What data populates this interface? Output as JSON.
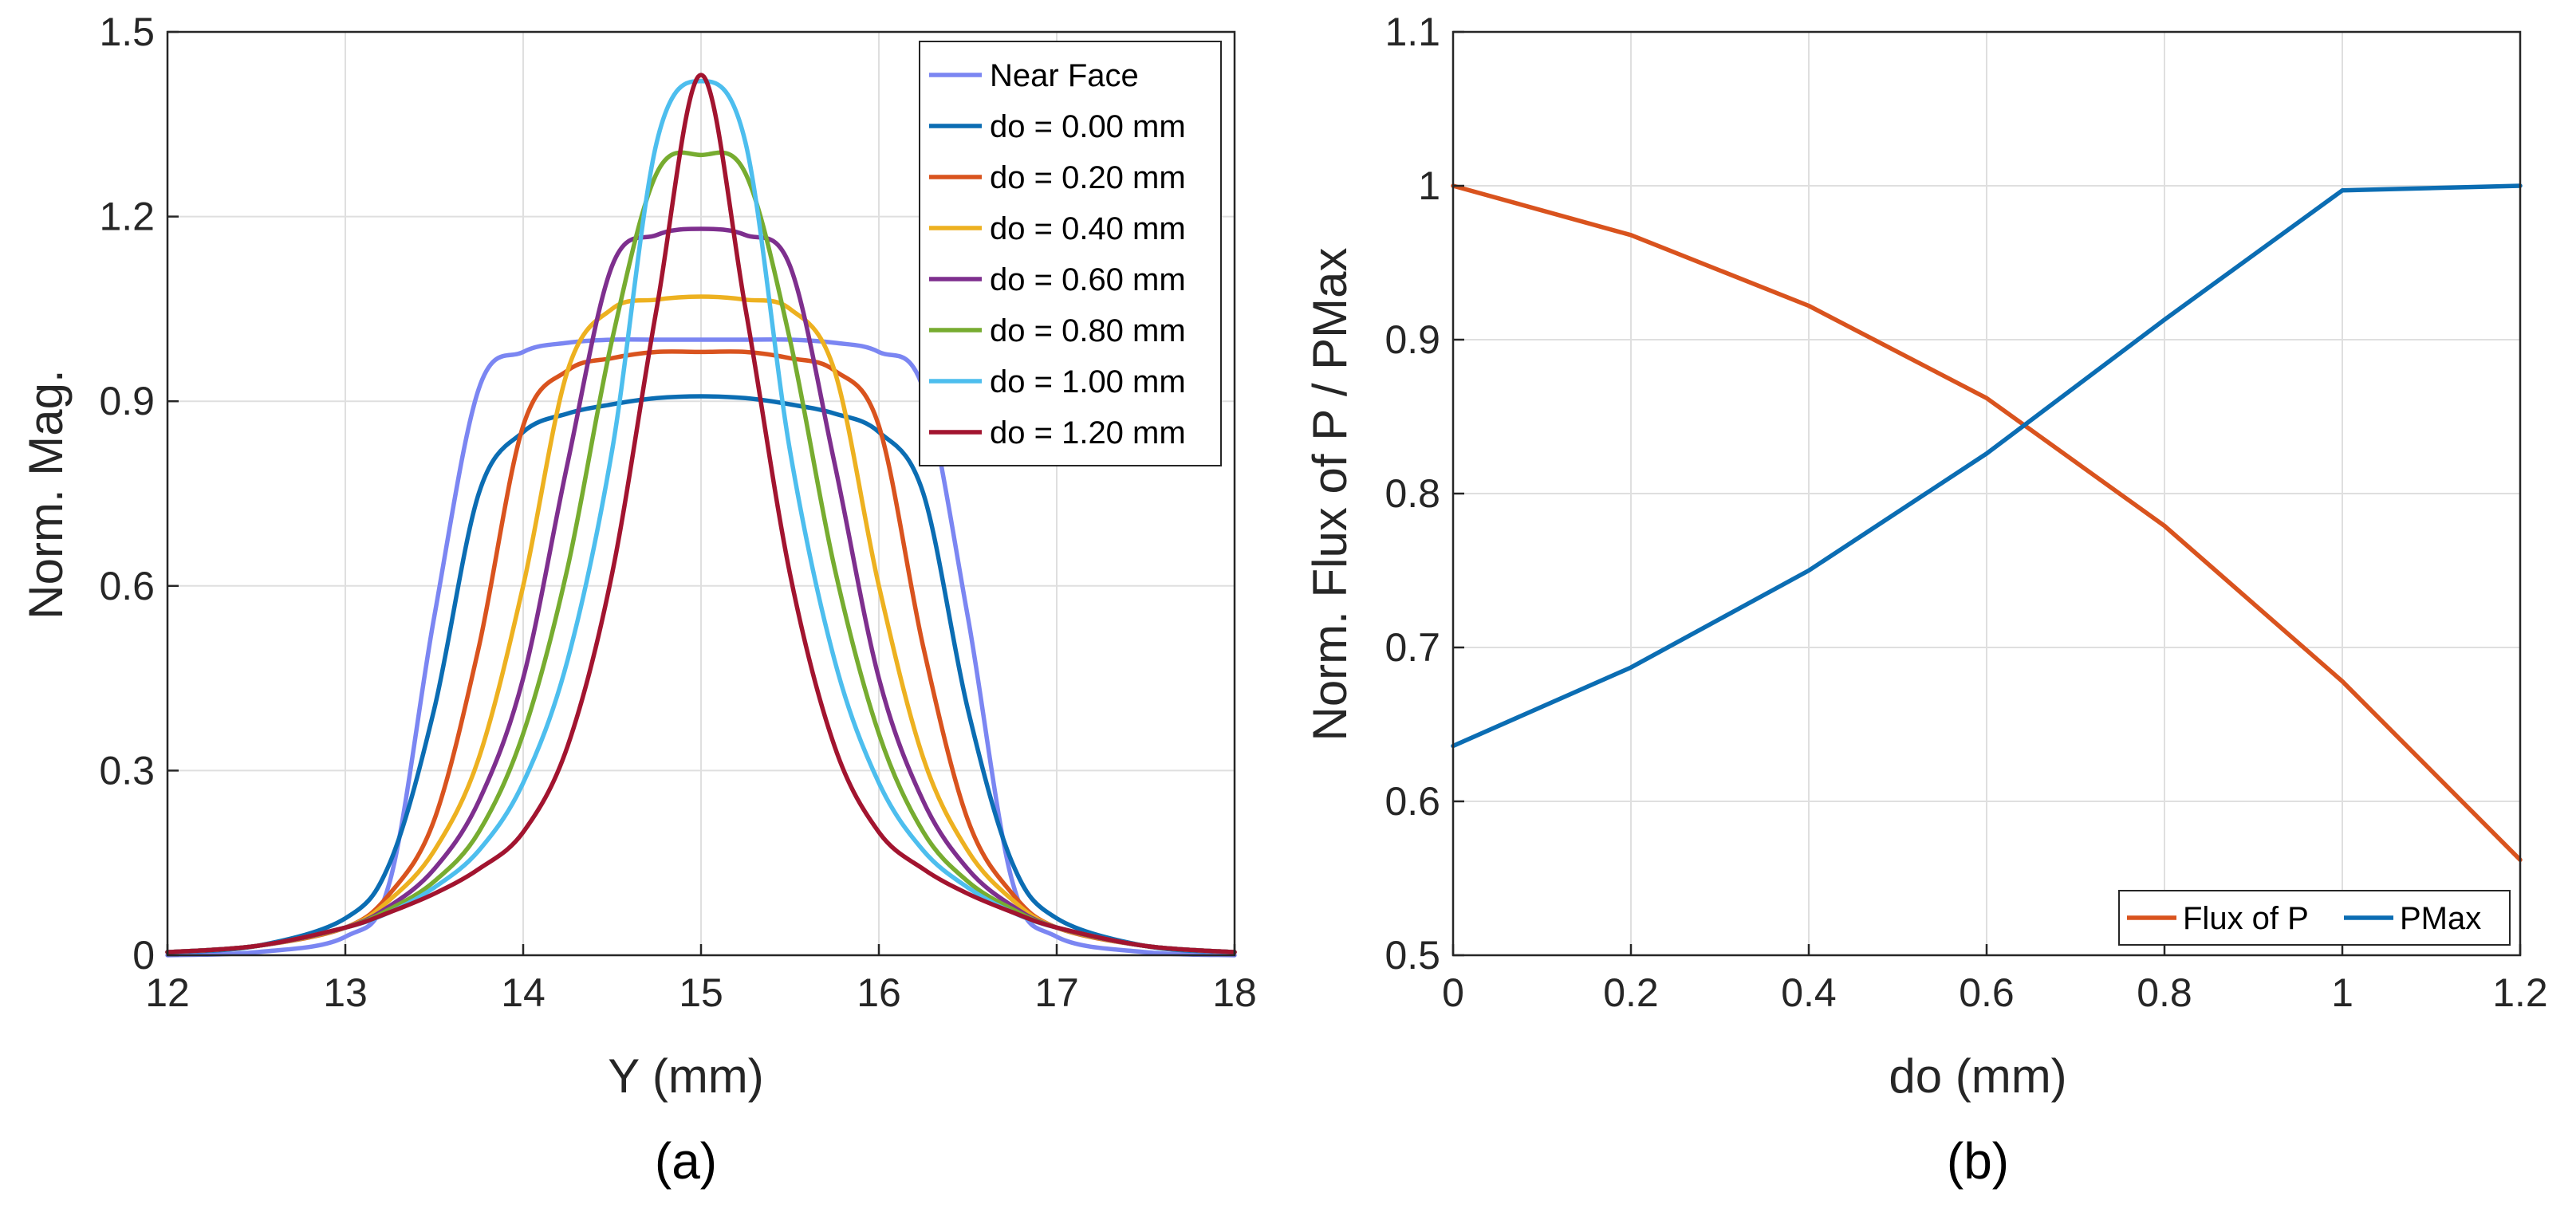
{
  "chart_data": [
    {
      "type": "line",
      "panel_label": "(a)",
      "xlabel": "Y (mm)",
      "ylabel": "Norm. Mag.",
      "xlim": [
        12,
        18
      ],
      "ylim": [
        0,
        1.5
      ],
      "x_ticks": [
        "12",
        "13",
        "14",
        "15",
        "16",
        "17",
        "18"
      ],
      "y_ticks": [
        "0",
        "0.3",
        "0.6",
        "0.9",
        "1.2",
        "1.5"
      ],
      "grid": true,
      "legend_position": "top-right",
      "x": [
        12.0,
        12.5,
        13.0,
        13.25,
        13.5,
        13.75,
        14.0,
        14.25,
        14.5,
        14.75,
        15.0,
        15.25,
        15.5,
        15.75,
        16.0,
        16.25,
        16.5,
        16.75,
        17.0,
        17.5,
        18.0
      ],
      "series": [
        {
          "name": "Near Face",
          "color": "#7b86f2",
          "values": [
            0.0,
            0.005,
            0.03,
            0.12,
            0.55,
            0.92,
            0.98,
            0.995,
            1.0,
            1.0,
            1.0,
            1.0,
            1.0,
            0.995,
            0.98,
            0.92,
            0.55,
            0.12,
            0.03,
            0.005,
            0.0
          ]
        },
        {
          "name": "do = 0.00 mm",
          "color": "#0b6db3",
          "values": [
            0.005,
            0.015,
            0.06,
            0.15,
            0.4,
            0.75,
            0.85,
            0.88,
            0.895,
            0.905,
            0.908,
            0.905,
            0.895,
            0.88,
            0.85,
            0.75,
            0.4,
            0.15,
            0.06,
            0.015,
            0.005
          ]
        },
        {
          "name": "do = 0.20 mm",
          "color": "#d9531e",
          "values": [
            0.005,
            0.015,
            0.045,
            0.1,
            0.22,
            0.5,
            0.86,
            0.95,
            0.97,
            0.98,
            0.98,
            0.98,
            0.97,
            0.95,
            0.86,
            0.5,
            0.22,
            0.1,
            0.045,
            0.015,
            0.005
          ]
        },
        {
          "name": "do = 0.40 mm",
          "color": "#edb120",
          "values": [
            0.005,
            0.015,
            0.045,
            0.09,
            0.17,
            0.32,
            0.6,
            0.95,
            1.05,
            1.065,
            1.07,
            1.065,
            1.05,
            0.95,
            0.6,
            0.32,
            0.17,
            0.09,
            0.045,
            0.015,
            0.005
          ]
        },
        {
          "name": "do = 0.60 mm",
          "color": "#7e2f8e",
          "values": [
            0.005,
            0.015,
            0.045,
            0.08,
            0.14,
            0.25,
            0.45,
            0.8,
            1.12,
            1.17,
            1.18,
            1.17,
            1.12,
            0.8,
            0.45,
            0.25,
            0.14,
            0.08,
            0.045,
            0.015,
            0.005
          ]
        },
        {
          "name": "do = 0.80 mm",
          "color": "#77ac30",
          "values": [
            0.005,
            0.015,
            0.045,
            0.075,
            0.12,
            0.2,
            0.36,
            0.63,
            1.0,
            1.27,
            1.3,
            1.27,
            1.0,
            0.63,
            0.36,
            0.2,
            0.12,
            0.075,
            0.045,
            0.015,
            0.005
          ]
        },
        {
          "name": "do = 1.00 mm",
          "color": "#4dbeee",
          "values": [
            0.005,
            0.015,
            0.045,
            0.07,
            0.11,
            0.17,
            0.28,
            0.48,
            0.82,
            1.32,
            1.42,
            1.32,
            0.82,
            0.48,
            0.28,
            0.17,
            0.11,
            0.07,
            0.045,
            0.015,
            0.005
          ]
        },
        {
          "name": "do = 1.20 mm",
          "color": "#a2142f",
          "values": [
            0.005,
            0.015,
            0.045,
            0.07,
            0.1,
            0.14,
            0.2,
            0.34,
            0.62,
            1.05,
            1.43,
            1.05,
            0.62,
            0.34,
            0.2,
            0.14,
            0.1,
            0.07,
            0.045,
            0.015,
            0.005
          ]
        }
      ]
    },
    {
      "type": "line",
      "panel_label": "(b)",
      "xlabel": "do (mm)",
      "ylabel": "Norm. Flux of P / PMax",
      "xlim": [
        0,
        1.2
      ],
      "ylim": [
        0.5,
        1.1
      ],
      "x_ticks": [
        "0",
        "0.2",
        "0.4",
        "0.6",
        "0.8",
        "1",
        "1.2"
      ],
      "y_ticks": [
        "0.5",
        "0.6",
        "0.7",
        "0.8",
        "0.9",
        "1",
        "1.1"
      ],
      "grid": true,
      "legend_position": "bottom-right",
      "x": [
        0,
        0.2,
        0.4,
        0.6,
        0.8,
        1.0,
        1.2
      ],
      "series": [
        {
          "name": "Flux of P",
          "color": "#d9531e",
          "values": [
            1.0,
            0.968,
            0.922,
            0.862,
            0.779,
            0.678,
            0.562
          ]
        },
        {
          "name": "PMax",
          "color": "#0b6db3",
          "values": [
            0.636,
            0.687,
            0.75,
            0.826,
            0.913,
            0.997,
            1.0
          ]
        }
      ]
    }
  ]
}
